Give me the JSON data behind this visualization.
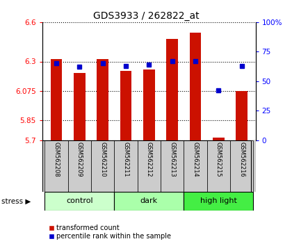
{
  "title": "GDS3933 / 262822_at",
  "samples": [
    "GSM562208",
    "GSM562209",
    "GSM562210",
    "GSM562211",
    "GSM562212",
    "GSM562213",
    "GSM562214",
    "GSM562215",
    "GSM562216"
  ],
  "red_values": [
    6.32,
    6.21,
    6.32,
    6.23,
    6.24,
    6.47,
    6.52,
    5.72,
    6.075
  ],
  "blue_values": [
    65,
    62,
    65,
    63,
    64,
    67,
    67,
    42,
    63
  ],
  "ylim_left": [
    5.7,
    6.6
  ],
  "ylim_right": [
    0,
    100
  ],
  "yticks_left": [
    5.7,
    5.85,
    6.075,
    6.3,
    6.6
  ],
  "ytick_labels_left": [
    "5.7",
    "5.85",
    "6.075",
    "6.3",
    "6.6"
  ],
  "yticks_right": [
    0,
    25,
    50,
    75,
    100
  ],
  "ytick_labels_right": [
    "0",
    "25",
    "50",
    "75",
    "100%"
  ],
  "groups": [
    {
      "label": "control",
      "start": 0,
      "end": 3,
      "color": "#ccffcc"
    },
    {
      "label": "dark",
      "start": 3,
      "end": 6,
      "color": "#aaffaa"
    },
    {
      "label": "high light",
      "start": 6,
      "end": 9,
      "color": "#44ee44"
    }
  ],
  "bar_color": "#cc1100",
  "marker_color": "#0000cc",
  "bar_width": 0.5,
  "background_color": "#ffffff",
  "sample_box_color": "#cccccc",
  "stress_label": "stress",
  "legend_items": [
    "transformed count",
    "percentile rank within the sample"
  ]
}
